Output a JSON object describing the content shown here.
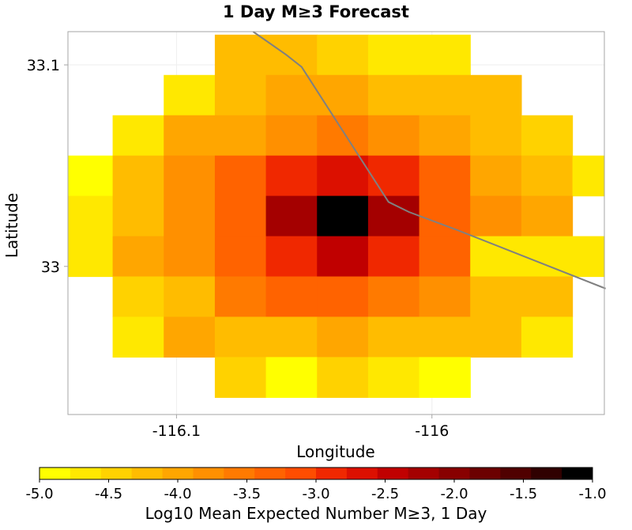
{
  "chart_data": {
    "type": "heatmap",
    "title": "1 Day M≥3 Forecast",
    "xlabel": "Longitude",
    "ylabel": "Latitude",
    "xlim": [
      -116.1425,
      -115.9325
    ],
    "ylim": [
      32.9265,
      33.1165
    ],
    "x_ticks": [
      -116.1,
      -116.0
    ],
    "x_tick_labels": [
      "-116.1",
      "-116"
    ],
    "y_ticks": [
      33.0,
      33.1
    ],
    "y_tick_labels": [
      "33",
      "33.1"
    ],
    "cell_size_deg": 0.02,
    "x_centers": [
      -116.135,
      -116.115,
      -116.095,
      -116.075,
      -116.055,
      -116.035,
      -116.015,
      -115.995,
      -115.975,
      -115.955,
      -115.935
    ],
    "y_centers": [
      33.105,
      33.085,
      33.065,
      33.045,
      33.025,
      33.005,
      32.985,
      32.965,
      32.945
    ],
    "values": [
      [
        null,
        null,
        null,
        -4.3,
        -4.3,
        -4.4,
        -4.7,
        -4.7,
        null,
        null,
        null
      ],
      [
        null,
        null,
        -4.7,
        -4.3,
        -4.1,
        -4.1,
        -4.3,
        -4.3,
        -4.3,
        null,
        null
      ],
      [
        null,
        -4.6,
        -4.0,
        -4.0,
        -3.7,
        -3.6,
        -3.7,
        -4.1,
        -4.3,
        -4.4,
        null
      ],
      [
        -4.9,
        -4.2,
        -3.7,
        -3.3,
        -2.9,
        -2.6,
        -2.9,
        -3.3,
        -4.0,
        -4.3,
        -4.7
      ],
      [
        -4.6,
        -4.2,
        -3.7,
        -3.3,
        -2.3,
        -1.1,
        -2.2,
        -3.3,
        -3.8,
        -4.0,
        null
      ],
      [
        -4.6,
        -4.0,
        -3.7,
        -3.3,
        -2.9,
        -2.4,
        -2.8,
        -3.3,
        -4.6,
        -4.6,
        -4.6
      ],
      [
        null,
        -4.5,
        -4.2,
        -3.6,
        -3.4,
        -3.4,
        -3.6,
        -3.7,
        -4.3,
        -4.3,
        null
      ],
      [
        null,
        -4.6,
        -4.0,
        -4.2,
        -4.2,
        -4.0,
        -4.2,
        -4.2,
        -4.3,
        -4.6,
        null
      ],
      [
        null,
        null,
        null,
        -4.4,
        -4.9,
        -4.4,
        -4.6,
        -4.9,
        null,
        null,
        null
      ]
    ],
    "fault_trace": {
      "lon": [
        -116.07,
        -116.057,
        -116.051,
        -116.017,
        -116.009,
        -115.99,
        -115.932
      ],
      "lat": [
        33.1165,
        33.105,
        33.099,
        33.032,
        33.027,
        33.018,
        32.989
      ]
    },
    "grid": true,
    "colorbar": {
      "label": "Log10 Mean Expected Number M≥3, 1 Day",
      "min": -5.0,
      "max": -1.0,
      "ticks": [
        -5.0,
        -4.5,
        -4.0,
        -3.5,
        -3.0,
        -2.5,
        -2.0,
        -1.5,
        -1.0
      ],
      "tick_labels": [
        "-5.0",
        "-4.5",
        "-4.0",
        "-3.5",
        "-3.0",
        "-2.5",
        "-2.0",
        "-1.5",
        "-1.0"
      ],
      "colors": [
        "#ffff00",
        "#ffe800",
        "#ffd200",
        "#ffbc00",
        "#ffa600",
        "#ff9000",
        "#ff7a00",
        "#ff6300",
        "#ff4d00",
        "#f02800",
        "#dc1000",
        "#c00000",
        "#a40000",
        "#880000",
        "#6c0000",
        "#500000",
        "#300000",
        "#000000"
      ]
    },
    "fault_color": "#808080",
    "axis_color": "#a6a6a6"
  }
}
